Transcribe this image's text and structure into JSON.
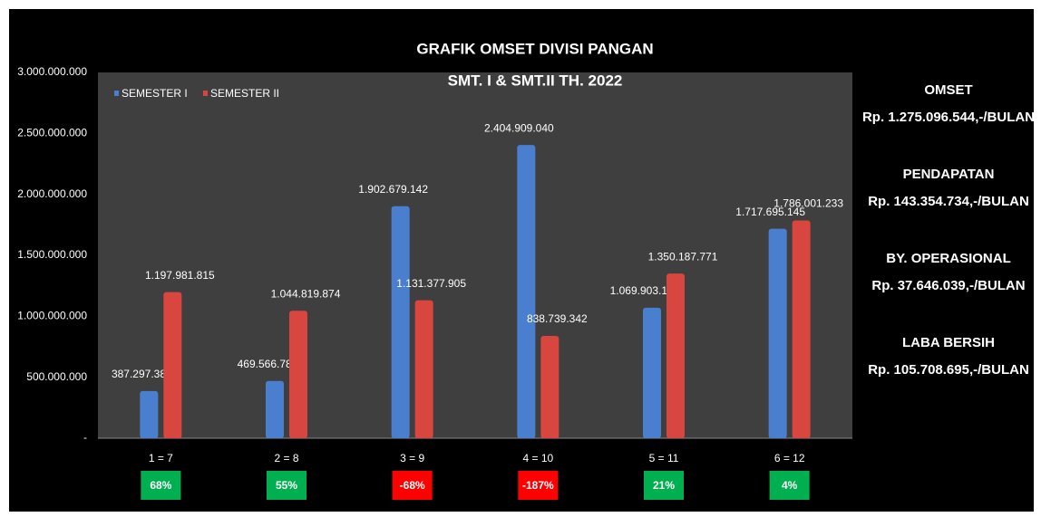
{
  "chart_data": {
    "type": "bar",
    "title": "GRAFIK  OMSET DIVISI PANGAN",
    "subtitle": "SMT. I & SMT.II TH. 2022",
    "categories": [
      "1 =  7",
      "2 =  8",
      "3 =  9",
      "4 = 10",
      "5 = 11",
      "6 = 12"
    ],
    "series": [
      {
        "name": "SEMESTER I",
        "color": "#4a7fd0",
        "values": [
          387297380,
          469566785,
          1902679142,
          2404909040,
          1069903100,
          1717695145
        ],
        "value_labels": [
          "387.297.380",
          "469.566.785",
          "1.902.679.142",
          "2.404.909.040",
          "1.069.903.100",
          "1.717.695.145"
        ]
      },
      {
        "name": "SEMESTER II",
        "color": "#d9453f",
        "values": [
          1197981815,
          1044819874,
          1131377905,
          838739342,
          1350187771,
          1786001233
        ],
        "value_labels": [
          "1.197.981.815",
          "1.044.819.874",
          "1.131.377.905",
          "838.739.342",
          "1.350.187.771",
          "1.786.001.233"
        ]
      }
    ],
    "ylim": [
      0,
      3000000000
    ],
    "yticks": [
      {
        "value": 0,
        "label": "-"
      },
      {
        "value": 500000000,
        "label": "500.000.000"
      },
      {
        "value": 1000000000,
        "label": "1.000.000.000"
      },
      {
        "value": 1500000000,
        "label": "1.500.000.000"
      },
      {
        "value": 2000000000,
        "label": "2.000.000.000"
      },
      {
        "value": 2500000000,
        "label": "2.500.000.000"
      },
      {
        "value": 3000000000,
        "label": "3.000.000.000"
      }
    ],
    "growth": {
      "values": [
        68,
        55,
        -68,
        -187,
        21,
        4
      ],
      "value_labels": [
        "68%",
        "55%",
        "-68%",
        "-187%",
        "21%",
        "4%"
      ],
      "colors": [
        "#00b050",
        "#00b050",
        "#ff0000",
        "#ff0000",
        "#00b050",
        "#00b050"
      ]
    }
  },
  "summary": [
    {
      "label": "OMSET",
      "value": "Rp. 1.275.096.544,-/BULAN"
    },
    {
      "label": "PENDAPATAN",
      "value": "Rp. 143.354.734,-/BULAN"
    },
    {
      "label": "BY. OPERASIONAL",
      "value": "Rp. 37.646.039,-/BULAN"
    },
    {
      "label": "LABA BERSIH",
      "value": "Rp. 105.708.695,-/BULAN"
    }
  ]
}
